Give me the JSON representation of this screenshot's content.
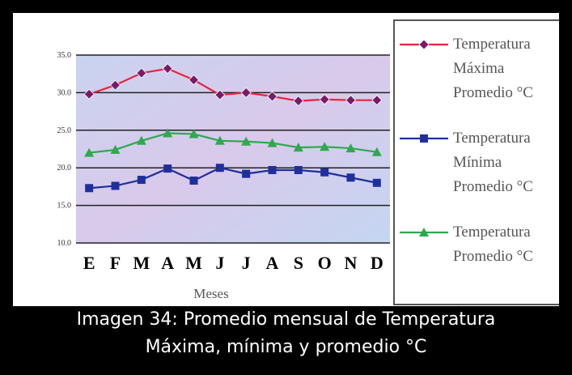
{
  "caption": {
    "line1": "Imagen 34: Promedio mensual de Temperatura",
    "line2": "Máxima, mínima y promedio °C"
  },
  "chart_data": {
    "type": "line",
    "xlabel": "Meses",
    "ylabel": "",
    "ylim": [
      10,
      35
    ],
    "yticks": [
      "10.0",
      "15.0",
      "20.0",
      "25.0",
      "30.0",
      "35.0"
    ],
    "categories": [
      "E",
      "F",
      "M",
      "A",
      "M",
      "J",
      "J",
      "A",
      "S",
      "O",
      "N",
      "D"
    ],
    "grid": true,
    "legend_position": "right",
    "series": [
      {
        "name": "Temperatura Máxima Promedio °C",
        "color": "#e8233a",
        "marker_color": "#7a1a6a",
        "marker": "diamond",
        "values": [
          29.8,
          31.0,
          32.6,
          33.2,
          31.7,
          29.7,
          30.0,
          29.5,
          28.9,
          29.1,
          29.0,
          29.0
        ]
      },
      {
        "name": "Temperatura Mínima Promedio °C",
        "color": "#1f2f9c",
        "marker_color": "#1f2f9c",
        "marker": "square",
        "values": [
          17.3,
          17.6,
          18.4,
          19.9,
          18.3,
          20.0,
          19.2,
          19.7,
          19.7,
          19.4,
          18.7,
          18.0
        ]
      },
      {
        "name": "Temperatura Promedio °C",
        "color": "#2fa84f",
        "marker_color": "#2fa84f",
        "marker": "triangle",
        "values": [
          22.0,
          22.4,
          23.6,
          24.6,
          24.5,
          23.6,
          23.5,
          23.3,
          22.7,
          22.8,
          22.6,
          22.1
        ]
      }
    ]
  },
  "legend": [
    {
      "text": "Temperatura\nMáxima\nPromedio °C"
    },
    {
      "text": "Temperatura\nMínima\nPromedio °C"
    },
    {
      "text": "Temperatura\nPromedio °C"
    }
  ]
}
